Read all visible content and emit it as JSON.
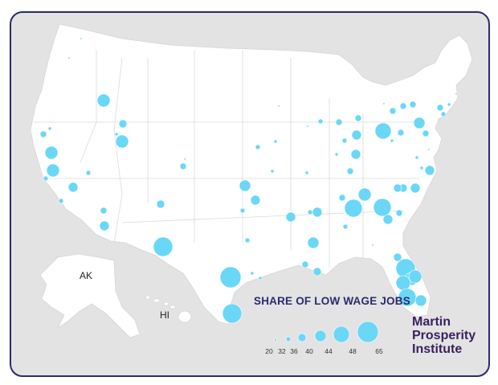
{
  "map": {
    "bubble_color": "#6ad7f7",
    "land_color": "#ffffff",
    "background_color": "#e3e3e4",
    "frame_color": "#2b2a6b",
    "inset_labels": {
      "alaska": "AK",
      "hawaii": "HI"
    }
  },
  "legend": {
    "title": "SHARE OF LOW WAGE JOBS",
    "ticks": [
      "20",
      "32",
      "36",
      "40",
      "44",
      "48",
      "65"
    ]
  },
  "logo": {
    "line1": "Martin",
    "line2": "Prosperity",
    "line3": "Institute",
    "color": "#3a1f5e"
  }
}
